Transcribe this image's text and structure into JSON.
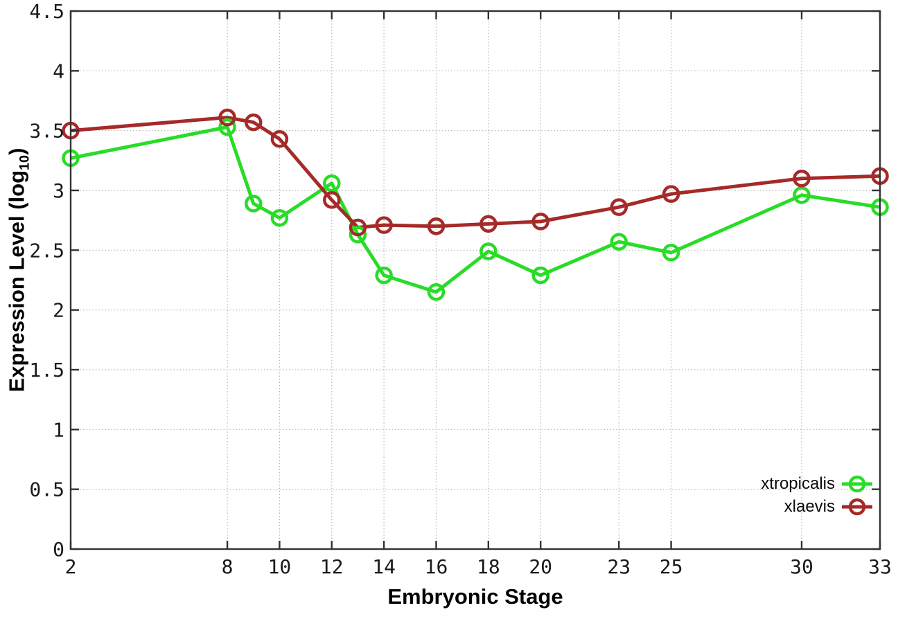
{
  "figure": {
    "background": "#ffffff",
    "border_color": "#333333",
    "grid_color": "#b4b4b4",
    "tick_label_color": "#1a1a1a"
  },
  "chart_data": {
    "type": "line",
    "title": "",
    "xlabel": "Embryonic Stage",
    "ylabel_prefix": "Expression Level (log",
    "ylabel_sub": "10",
    "ylabel_suffix": ")",
    "xlim": [
      2,
      33
    ],
    "ylim": [
      0,
      4.5
    ],
    "grid": true,
    "grid_style": "dotted",
    "legend_position": "bottom-right",
    "marker": "open-circle",
    "x": [
      2,
      8,
      9,
      10,
      12,
      13,
      14,
      16,
      18,
      20,
      23,
      25,
      30,
      33
    ],
    "xticks": [
      2,
      8,
      10,
      12,
      14,
      16,
      18,
      20,
      23,
      25,
      30,
      33
    ],
    "xtick_labels": [
      "2",
      "8",
      "10",
      "12",
      "14",
      "16",
      "18",
      "20",
      "23",
      "25",
      "30",
      "33"
    ],
    "yticks": [
      0,
      0.5,
      1,
      1.5,
      2,
      2.5,
      3,
      3.5,
      4,
      4.5
    ],
    "ytick_labels": [
      "0",
      "0.5",
      "1",
      "1.5",
      "2",
      "2.5",
      "3",
      "3.5",
      "4",
      "4.5"
    ],
    "series": [
      {
        "name": "xtropicalis",
        "color": "#28dc28",
        "values": [
          3.27,
          3.53,
          2.89,
          2.77,
          3.06,
          2.63,
          2.29,
          2.15,
          2.49,
          2.29,
          2.57,
          2.48,
          2.96,
          2.86
        ]
      },
      {
        "name": "xlaevis",
        "color": "#a52a28",
        "values": [
          3.5,
          3.61,
          3.57,
          3.43,
          2.92,
          2.69,
          2.71,
          2.7,
          2.72,
          2.74,
          2.86,
          2.97,
          3.1,
          3.12
        ]
      }
    ]
  }
}
